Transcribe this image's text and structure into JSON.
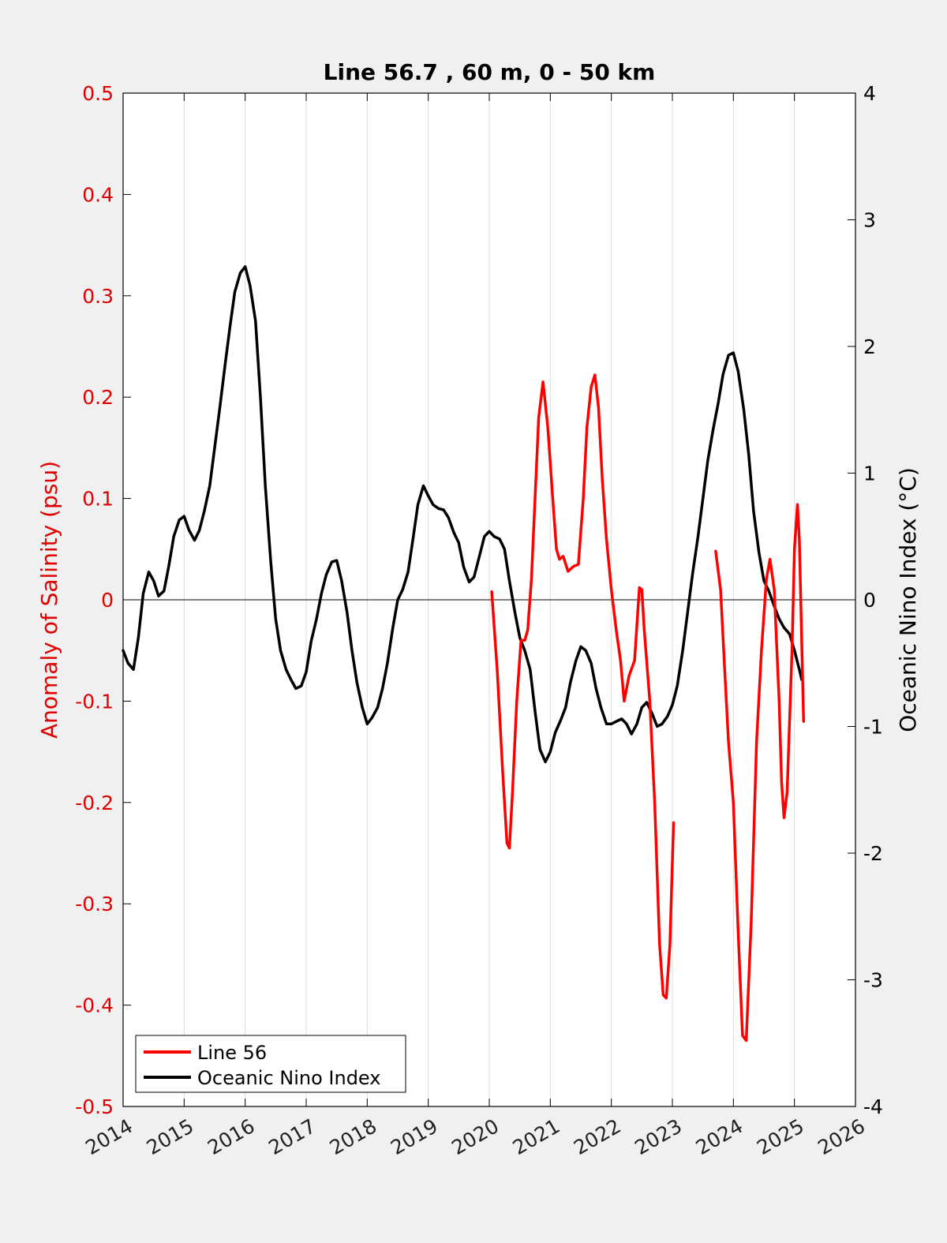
{
  "chart_data": {
    "type": "line",
    "title": "Line 56.7 , 60 m, 0 - 50 km",
    "ylabel_left": "Anomaly of Salinity (psu)",
    "ylabel_right": "Oceanic Nino Index (°C)",
    "xlabel": "",
    "xlim": [
      2014,
      2026
    ],
    "ylim_left": [
      -0.5,
      0.5
    ],
    "ylim_right": [
      -4,
      4
    ],
    "x_ticks": [
      "2014",
      "2015",
      "2016",
      "2017",
      "2018",
      "2019",
      "2020",
      "2021",
      "2022",
      "2023",
      "2024",
      "2025",
      "2026"
    ],
    "y_ticks_left": [
      "0.5",
      "0.4",
      "0.3",
      "0.2",
      "0.1",
      "0",
      "-0.1",
      "-0.2",
      "-0.3",
      "-0.4",
      "-0.5"
    ],
    "y_ticks_right": [
      "4",
      "3",
      "2",
      "1",
      "0",
      "-1",
      "-2",
      "-3",
      "-4"
    ],
    "grid": "vertical",
    "zero_line": true,
    "legend_position": "bottom-left",
    "colors": {
      "salinity": "#ff0000",
      "oni": "#000000",
      "axis_left": "#e00000",
      "grid": "#dddddd",
      "plot_bg": "#ffffff",
      "figure_bg": "#f0f0f0"
    },
    "series": [
      {
        "name": "Line 56",
        "axis": "left",
        "segments": [
          [
            [
              2020.04,
              0.008
            ],
            [
              2020.13,
              -0.07
            ],
            [
              2020.22,
              -0.17
            ],
            [
              2020.29,
              -0.24
            ],
            [
              2020.33,
              -0.245
            ],
            [
              2020.38,
              -0.19
            ],
            [
              2020.45,
              -0.1
            ],
            [
              2020.52,
              -0.04
            ],
            [
              2020.58,
              -0.04
            ],
            [
              2020.63,
              -0.03
            ],
            [
              2020.69,
              0.02
            ],
            [
              2020.75,
              0.1
            ],
            [
              2020.81,
              0.18
            ],
            [
              2020.88,
              0.215
            ],
            [
              2020.96,
              0.17
            ],
            [
              2021.04,
              0.1
            ],
            [
              2021.1,
              0.05
            ],
            [
              2021.15,
              0.04
            ],
            [
              2021.21,
              0.043
            ],
            [
              2021.29,
              0.028
            ],
            [
              2021.38,
              0.033
            ],
            [
              2021.46,
              0.035
            ],
            [
              2021.54,
              0.1
            ],
            [
              2021.6,
              0.17
            ],
            [
              2021.67,
              0.21
            ],
            [
              2021.73,
              0.222
            ],
            [
              2021.79,
              0.19
            ],
            [
              2021.85,
              0.12
            ],
            [
              2021.92,
              0.06
            ],
            [
              2022.0,
              0.01
            ],
            [
              2022.08,
              -0.03
            ],
            [
              2022.15,
              -0.06
            ],
            [
              2022.21,
              -0.1
            ],
            [
              2022.29,
              -0.075
            ],
            [
              2022.38,
              -0.06
            ],
            [
              2022.46,
              0.012
            ],
            [
              2022.5,
              0.01
            ],
            [
              2022.54,
              -0.03
            ],
            [
              2022.63,
              -0.1
            ],
            [
              2022.71,
              -0.2
            ],
            [
              2022.79,
              -0.34
            ],
            [
              2022.85,
              -0.39
            ],
            [
              2022.9,
              -0.393
            ],
            [
              2022.96,
              -0.34
            ],
            [
              2023.02,
              -0.22
            ]
          ],
          [
            [
              2023.71,
              0.048
            ],
            [
              2023.79,
              0.01
            ],
            [
              2023.85,
              -0.06
            ],
            [
              2023.92,
              -0.14
            ],
            [
              2024.0,
              -0.2
            ],
            [
              2024.08,
              -0.33
            ],
            [
              2024.15,
              -0.43
            ],
            [
              2024.21,
              -0.435
            ],
            [
              2024.29,
              -0.32
            ],
            [
              2024.38,
              -0.14
            ],
            [
              2024.46,
              -0.05
            ],
            [
              2024.54,
              0.02
            ],
            [
              2024.6,
              0.04
            ],
            [
              2024.67,
              0.01
            ],
            [
              2024.75,
              -0.1
            ],
            [
              2024.79,
              -0.18
            ],
            [
              2024.83,
              -0.215
            ],
            [
              2024.88,
              -0.19
            ],
            [
              2024.96,
              -0.05
            ],
            [
              2025.0,
              0.05
            ],
            [
              2025.05,
              0.094
            ],
            [
              2025.08,
              0.06
            ],
            [
              2025.12,
              -0.04
            ],
            [
              2025.15,
              -0.12
            ]
          ]
        ]
      },
      {
        "name": "Oceanic Nino Index",
        "axis": "right",
        "points": [
          [
            2014.0,
            -0.4
          ],
          [
            2014.08,
            -0.5
          ],
          [
            2014.17,
            -0.55
          ],
          [
            2014.25,
            -0.3
          ],
          [
            2014.33,
            0.05
          ],
          [
            2014.42,
            0.22
          ],
          [
            2014.5,
            0.15
          ],
          [
            2014.58,
            0.03
          ],
          [
            2014.67,
            0.07
          ],
          [
            2014.75,
            0.27
          ],
          [
            2014.83,
            0.5
          ],
          [
            2014.92,
            0.63
          ],
          [
            2015.0,
            0.66
          ],
          [
            2015.08,
            0.55
          ],
          [
            2015.17,
            0.47
          ],
          [
            2015.25,
            0.55
          ],
          [
            2015.33,
            0.7
          ],
          [
            2015.42,
            0.9
          ],
          [
            2015.5,
            1.2
          ],
          [
            2015.58,
            1.5
          ],
          [
            2015.67,
            1.85
          ],
          [
            2015.75,
            2.15
          ],
          [
            2015.83,
            2.43
          ],
          [
            2015.92,
            2.58
          ],
          [
            2016.0,
            2.63
          ],
          [
            2016.08,
            2.48
          ],
          [
            2016.17,
            2.2
          ],
          [
            2016.25,
            1.6
          ],
          [
            2016.33,
            0.9
          ],
          [
            2016.42,
            0.3
          ],
          [
            2016.5,
            -0.15
          ],
          [
            2016.58,
            -0.4
          ],
          [
            2016.67,
            -0.55
          ],
          [
            2016.75,
            -0.63
          ],
          [
            2016.83,
            -0.7
          ],
          [
            2016.92,
            -0.68
          ],
          [
            2017.0,
            -0.57
          ],
          [
            2017.08,
            -0.33
          ],
          [
            2017.17,
            -0.15
          ],
          [
            2017.25,
            0.05
          ],
          [
            2017.33,
            0.2
          ],
          [
            2017.42,
            0.3
          ],
          [
            2017.5,
            0.31
          ],
          [
            2017.58,
            0.15
          ],
          [
            2017.67,
            -0.1
          ],
          [
            2017.75,
            -0.4
          ],
          [
            2017.83,
            -0.65
          ],
          [
            2017.92,
            -0.85
          ],
          [
            2018.0,
            -0.98
          ],
          [
            2018.08,
            -0.93
          ],
          [
            2018.17,
            -0.85
          ],
          [
            2018.25,
            -0.7
          ],
          [
            2018.33,
            -0.5
          ],
          [
            2018.42,
            -0.22
          ],
          [
            2018.5,
            0.0
          ],
          [
            2018.58,
            0.08
          ],
          [
            2018.67,
            0.22
          ],
          [
            2018.75,
            0.48
          ],
          [
            2018.83,
            0.75
          ],
          [
            2018.92,
            0.9
          ],
          [
            2019.0,
            0.82
          ],
          [
            2019.08,
            0.75
          ],
          [
            2019.17,
            0.72
          ],
          [
            2019.25,
            0.71
          ],
          [
            2019.33,
            0.65
          ],
          [
            2019.42,
            0.53
          ],
          [
            2019.5,
            0.45
          ],
          [
            2019.58,
            0.26
          ],
          [
            2019.67,
            0.14
          ],
          [
            2019.75,
            0.18
          ],
          [
            2019.83,
            0.33
          ],
          [
            2019.92,
            0.5
          ],
          [
            2020.0,
            0.54
          ],
          [
            2020.08,
            0.5
          ],
          [
            2020.17,
            0.48
          ],
          [
            2020.25,
            0.4
          ],
          [
            2020.33,
            0.15
          ],
          [
            2020.42,
            -0.1
          ],
          [
            2020.5,
            -0.3
          ],
          [
            2020.58,
            -0.4
          ],
          [
            2020.67,
            -0.55
          ],
          [
            2020.75,
            -0.88
          ],
          [
            2020.83,
            -1.18
          ],
          [
            2020.92,
            -1.28
          ],
          [
            2021.0,
            -1.2
          ],
          [
            2021.08,
            -1.05
          ],
          [
            2021.17,
            -0.95
          ],
          [
            2021.25,
            -0.85
          ],
          [
            2021.33,
            -0.65
          ],
          [
            2021.42,
            -0.48
          ],
          [
            2021.5,
            -0.37
          ],
          [
            2021.58,
            -0.4
          ],
          [
            2021.67,
            -0.5
          ],
          [
            2021.75,
            -0.7
          ],
          [
            2021.83,
            -0.85
          ],
          [
            2021.92,
            -0.98
          ],
          [
            2022.0,
            -0.98
          ],
          [
            2022.08,
            -0.96
          ],
          [
            2022.17,
            -0.94
          ],
          [
            2022.25,
            -0.98
          ],
          [
            2022.33,
            -1.06
          ],
          [
            2022.42,
            -0.98
          ],
          [
            2022.5,
            -0.85
          ],
          [
            2022.58,
            -0.81
          ],
          [
            2022.67,
            -0.9
          ],
          [
            2022.75,
            -1.0
          ],
          [
            2022.83,
            -0.98
          ],
          [
            2022.92,
            -0.92
          ],
          [
            2023.0,
            -0.83
          ],
          [
            2023.08,
            -0.68
          ],
          [
            2023.17,
            -0.4
          ],
          [
            2023.25,
            -0.1
          ],
          [
            2023.33,
            0.2
          ],
          [
            2023.42,
            0.5
          ],
          [
            2023.5,
            0.8
          ],
          [
            2023.58,
            1.1
          ],
          [
            2023.67,
            1.35
          ],
          [
            2023.75,
            1.55
          ],
          [
            2023.83,
            1.78
          ],
          [
            2023.92,
            1.93
          ],
          [
            2024.0,
            1.95
          ],
          [
            2024.08,
            1.8
          ],
          [
            2024.17,
            1.5
          ],
          [
            2024.25,
            1.15
          ],
          [
            2024.33,
            0.7
          ],
          [
            2024.42,
            0.37
          ],
          [
            2024.5,
            0.15
          ],
          [
            2024.58,
            0.07
          ],
          [
            2024.67,
            -0.05
          ],
          [
            2024.75,
            -0.15
          ],
          [
            2024.83,
            -0.22
          ],
          [
            2024.92,
            -0.27
          ],
          [
            2025.0,
            -0.4
          ],
          [
            2025.08,
            -0.55
          ],
          [
            2025.12,
            -0.63
          ]
        ]
      }
    ]
  }
}
